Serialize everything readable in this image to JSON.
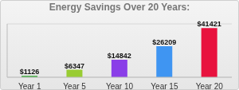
{
  "chart_data": {
    "type": "bar",
    "title": "Energy Savings Over 20 Years:",
    "categories": [
      "Year 1",
      "Year 5",
      "Year 10",
      "Year 15",
      "Year 20"
    ],
    "values": [
      1126,
      6347,
      14842,
      26209,
      41421
    ],
    "value_labels": [
      "$1126",
      "$6347",
      "$14842",
      "$26209",
      "$41421"
    ],
    "colors": [
      "#33a833",
      "#99cc33",
      "#8a3ee8",
      "#3f95f2",
      "#e8123e"
    ],
    "ylim": [
      0,
      45000
    ],
    "yticks": [
      0,
      10000,
      20000,
      30000,
      40000
    ],
    "grid": true,
    "data_labels": true,
    "tick_labels": "x"
  }
}
